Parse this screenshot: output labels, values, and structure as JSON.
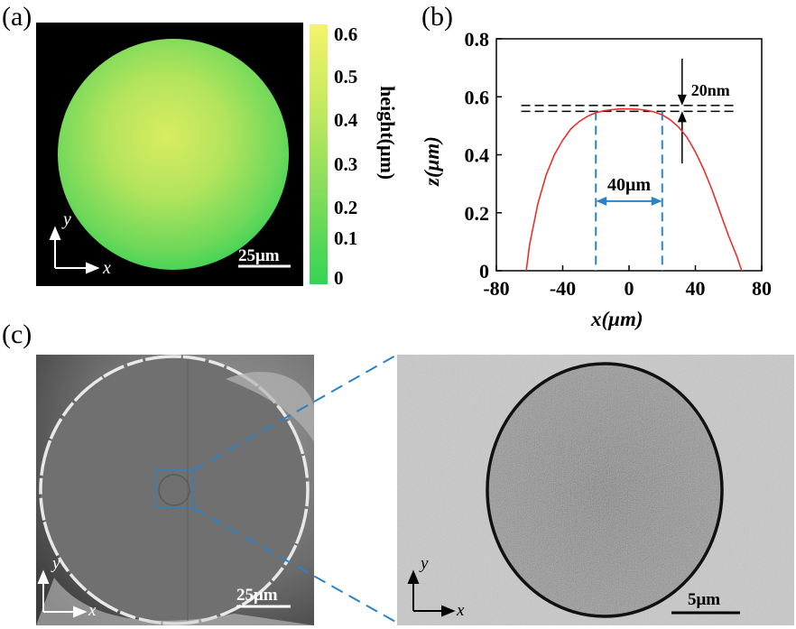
{
  "panels": {
    "a": {
      "label": "(a)"
    },
    "b": {
      "label": "(b)"
    },
    "c": {
      "label": "(c)"
    }
  },
  "panel_a": {
    "colorbar": {
      "title": "height(μm)",
      "ticks": [
        "0.6",
        "0.5",
        "0.4",
        "0.3",
        "0.2",
        "0.1",
        "0"
      ],
      "color_top": "#f3f46a",
      "color_bottom": "#35d455"
    },
    "scalebar": "25μm",
    "axis_y": "y",
    "axis_x": "x"
  },
  "chart_data": {
    "type": "line",
    "xlabel": "x(μm)",
    "ylabel": "z(μm)",
    "xlim": [
      -80,
      80
    ],
    "ylim": [
      0,
      0.8
    ],
    "xticks": [
      "-80",
      "-40",
      "0",
      "40",
      "80"
    ],
    "yticks": [
      "0",
      "0.2",
      "0.4",
      "0.6",
      "0.8"
    ],
    "series": [
      {
        "color": "#e8302e",
        "x": [
          -62,
          -60,
          -55,
          -50,
          -45,
          -40,
          -35,
          -30,
          -25,
          -20,
          -15,
          -10,
          -5,
          0,
          5,
          10,
          15,
          20,
          25,
          30,
          35,
          40,
          45,
          50,
          55,
          60,
          65,
          68
        ],
        "y": [
          0,
          0.09,
          0.23,
          0.33,
          0.4,
          0.45,
          0.49,
          0.515,
          0.533,
          0.545,
          0.552,
          0.556,
          0.558,
          0.558,
          0.557,
          0.554,
          0.548,
          0.538,
          0.52,
          0.495,
          0.46,
          0.41,
          0.35,
          0.28,
          0.2,
          0.12,
          0.05,
          0
        ]
      }
    ],
    "annotations": {
      "width_label": "40μm",
      "width_range": [
        -20,
        20
      ],
      "height_label": "20nm",
      "reference_lines_z": [
        0.55,
        0.57
      ]
    }
  },
  "panel_c": {
    "left_scalebar": "25μm",
    "right_scalebar": "5μm",
    "axis_y": "y",
    "axis_x": "x"
  }
}
